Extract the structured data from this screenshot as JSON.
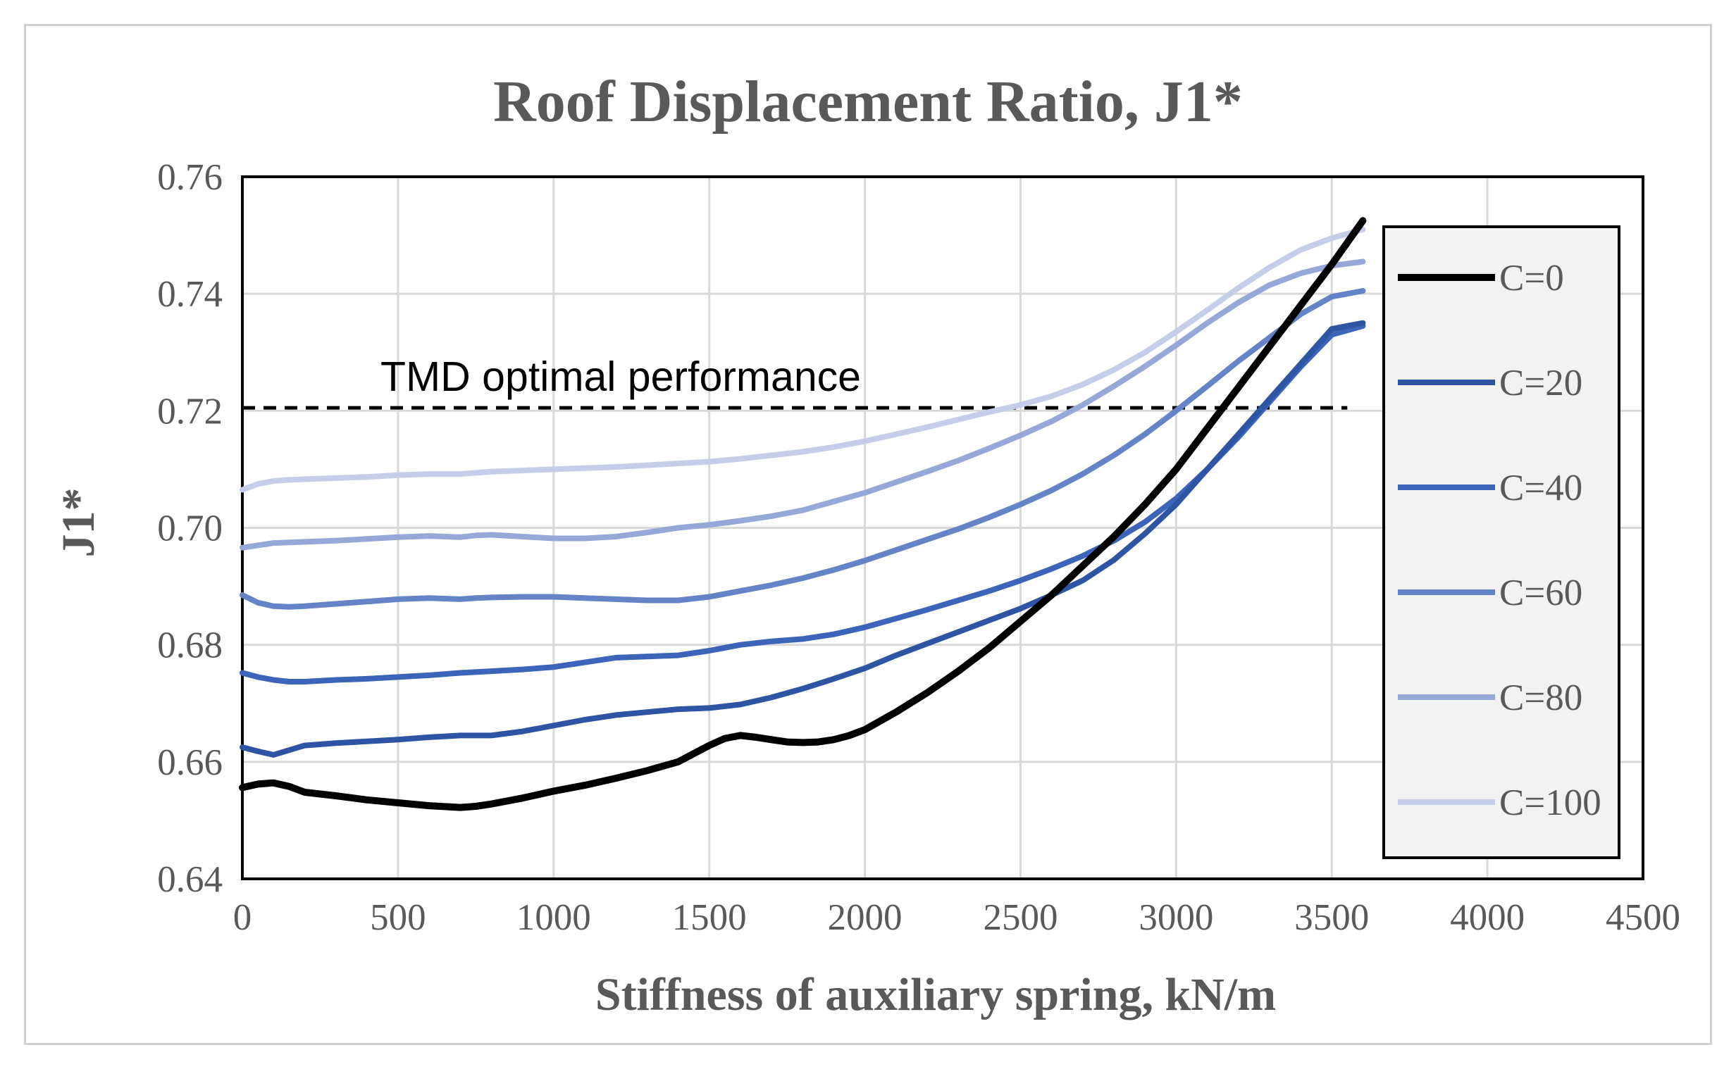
{
  "chart_data": {
    "type": "line",
    "title": "Roof Displacement Ratio, J1*",
    "xlabel": "Stiffness of auxiliary spring, kN/m",
    "ylabel": "J1*",
    "xlim": [
      0,
      4500
    ],
    "ylim": [
      0.64,
      0.76
    ],
    "xticks": [
      0,
      500,
      1000,
      1500,
      2000,
      2500,
      3000,
      3500,
      4000,
      4500
    ],
    "xtick_labels": [
      "0",
      "500",
      "1000",
      "1500",
      "2000",
      "2500",
      "3000",
      "3500",
      "4000",
      "4500"
    ],
    "yticks": [
      0.64,
      0.66,
      0.68,
      0.7,
      0.72,
      0.74,
      0.76
    ],
    "ytick_labels": [
      "0.64",
      "0.66",
      "0.68",
      "0.70",
      "0.72",
      "0.74",
      "0.76"
    ],
    "grid": true,
    "legend_position": "right",
    "annotation": {
      "text": "TMD optimal performance",
      "y": 0.7205,
      "x_range": [
        0,
        3550
      ],
      "style": "dashed"
    },
    "series": [
      {
        "name": "C=0",
        "color": "#000000",
        "width": 10,
        "x": [
          0,
          50,
          100,
          150,
          200,
          300,
          400,
          500,
          600,
          700,
          750,
          800,
          900,
          1000,
          1100,
          1200,
          1300,
          1400,
          1500,
          1550,
          1600,
          1650,
          1700,
          1750,
          1800,
          1850,
          1900,
          1950,
          2000,
          2100,
          2200,
          2300,
          2400,
          2500,
          2600,
          2700,
          2800,
          2900,
          3000,
          3100,
          3200,
          3300,
          3400,
          3500,
          3600
        ],
        "y": [
          0.6556,
          0.6562,
          0.6564,
          0.6558,
          0.6548,
          0.6542,
          0.6535,
          0.653,
          0.6525,
          0.6522,
          0.6524,
          0.6528,
          0.6538,
          0.655,
          0.656,
          0.6572,
          0.6585,
          0.66,
          0.6628,
          0.664,
          0.6645,
          0.6642,
          0.6638,
          0.6634,
          0.6633,
          0.6634,
          0.6638,
          0.6645,
          0.6655,
          0.6685,
          0.6718,
          0.6755,
          0.6795,
          0.684,
          0.6885,
          0.6935,
          0.6985,
          0.704,
          0.71,
          0.717,
          0.724,
          0.731,
          0.738,
          0.745,
          0.7525
        ]
      },
      {
        "name": "C=20",
        "color": "#2e55a3",
        "width": 8,
        "x": [
          0,
          50,
          100,
          150,
          200,
          300,
          400,
          500,
          600,
          700,
          800,
          900,
          1000,
          1100,
          1200,
          1300,
          1400,
          1500,
          1600,
          1700,
          1800,
          1900,
          2000,
          2100,
          2200,
          2300,
          2400,
          2500,
          2600,
          2700,
          2800,
          2900,
          3000,
          3100,
          3200,
          3300,
          3400,
          3500,
          3600
        ],
        "y": [
          0.6625,
          0.6618,
          0.6612,
          0.662,
          0.6628,
          0.6632,
          0.6635,
          0.6638,
          0.6642,
          0.6645,
          0.6645,
          0.6652,
          0.6662,
          0.6672,
          0.668,
          0.6685,
          0.669,
          0.6692,
          0.6698,
          0.671,
          0.6725,
          0.6742,
          0.676,
          0.6782,
          0.6802,
          0.6822,
          0.6842,
          0.6862,
          0.6885,
          0.691,
          0.6945,
          0.699,
          0.704,
          0.71,
          0.716,
          0.722,
          0.728,
          0.734,
          0.735
        ]
      },
      {
        "name": "C=40",
        "color": "#3c64b9",
        "width": 8,
        "x": [
          0,
          50,
          100,
          150,
          200,
          300,
          400,
          500,
          600,
          700,
          800,
          900,
          1000,
          1100,
          1200,
          1300,
          1400,
          1500,
          1600,
          1700,
          1800,
          1900,
          2000,
          2100,
          2200,
          2300,
          2400,
          2500,
          2600,
          2700,
          2800,
          2900,
          3000,
          3100,
          3200,
          3300,
          3400,
          3500,
          3600
        ],
        "y": [
          0.6752,
          0.6745,
          0.674,
          0.6737,
          0.6737,
          0.674,
          0.6742,
          0.6745,
          0.6748,
          0.6752,
          0.6755,
          0.6758,
          0.6762,
          0.677,
          0.6778,
          0.678,
          0.6782,
          0.679,
          0.68,
          0.6806,
          0.681,
          0.6818,
          0.683,
          0.6845,
          0.686,
          0.6876,
          0.6892,
          0.691,
          0.693,
          0.6952,
          0.6978,
          0.701,
          0.705,
          0.71,
          0.7155,
          0.7215,
          0.7275,
          0.733,
          0.7345
        ]
      },
      {
        "name": "C=60",
        "color": "#6584c8",
        "width": 8,
        "x": [
          0,
          50,
          100,
          150,
          200,
          300,
          400,
          500,
          600,
          700,
          750,
          800,
          900,
          1000,
          1100,
          1200,
          1300,
          1400,
          1500,
          1600,
          1700,
          1800,
          1900,
          2000,
          2100,
          2200,
          2300,
          2400,
          2500,
          2600,
          2700,
          2800,
          2900,
          3000,
          3100,
          3200,
          3300,
          3400,
          3500,
          3600
        ],
        "y": [
          0.6885,
          0.6872,
          0.6866,
          0.6865,
          0.6866,
          0.687,
          0.6874,
          0.6878,
          0.688,
          0.6878,
          0.688,
          0.6881,
          0.6882,
          0.6882,
          0.688,
          0.6878,
          0.6876,
          0.6876,
          0.6882,
          0.6892,
          0.6902,
          0.6914,
          0.6928,
          0.6944,
          0.6962,
          0.698,
          0.6998,
          0.7018,
          0.704,
          0.7064,
          0.7092,
          0.7124,
          0.716,
          0.72,
          0.7242,
          0.7285,
          0.7325,
          0.7365,
          0.7395,
          0.7405
        ]
      },
      {
        "name": "C=80",
        "color": "#96a8d8",
        "width": 8,
        "x": [
          0,
          50,
          100,
          150,
          200,
          300,
          400,
          500,
          600,
          700,
          750,
          800,
          900,
          1000,
          1100,
          1200,
          1300,
          1400,
          1500,
          1600,
          1700,
          1800,
          1900,
          2000,
          2100,
          2200,
          2300,
          2400,
          2500,
          2600,
          2700,
          2800,
          2900,
          3000,
          3100,
          3200,
          3300,
          3400,
          3500,
          3600
        ],
        "y": [
          0.6966,
          0.697,
          0.6974,
          0.6975,
          0.6976,
          0.6978,
          0.6981,
          0.6984,
          0.6986,
          0.6984,
          0.6987,
          0.6988,
          0.6985,
          0.6982,
          0.6982,
          0.6985,
          0.6992,
          0.7,
          0.7005,
          0.7012,
          0.702,
          0.703,
          0.7045,
          0.706,
          0.7078,
          0.7096,
          0.7115,
          0.7136,
          0.7158,
          0.7182,
          0.721,
          0.7242,
          0.7276,
          0.7312,
          0.735,
          0.7385,
          0.7415,
          0.7435,
          0.7448,
          0.7455
        ]
      },
      {
        "name": "C=100",
        "color": "#c5cde8",
        "width": 8,
        "x": [
          0,
          50,
          100,
          150,
          200,
          300,
          400,
          500,
          600,
          700,
          750,
          800,
          900,
          1000,
          1100,
          1200,
          1300,
          1400,
          1500,
          1600,
          1700,
          1800,
          1900,
          2000,
          2100,
          2200,
          2300,
          2400,
          2500,
          2600,
          2700,
          2800,
          2900,
          3000,
          3100,
          3200,
          3300,
          3400,
          3500,
          3600
        ],
        "y": [
          0.7065,
          0.7075,
          0.708,
          0.7082,
          0.7083,
          0.7085,
          0.7087,
          0.709,
          0.7092,
          0.7092,
          0.7094,
          0.7096,
          0.7098,
          0.71,
          0.7102,
          0.7104,
          0.7107,
          0.711,
          0.7113,
          0.7118,
          0.7124,
          0.713,
          0.7138,
          0.7148,
          0.716,
          0.7172,
          0.7185,
          0.7198,
          0.721,
          0.7225,
          0.7245,
          0.727,
          0.73,
          0.7335,
          0.7372,
          0.741,
          0.7445,
          0.7475,
          0.7495,
          0.751
        ]
      }
    ]
  }
}
